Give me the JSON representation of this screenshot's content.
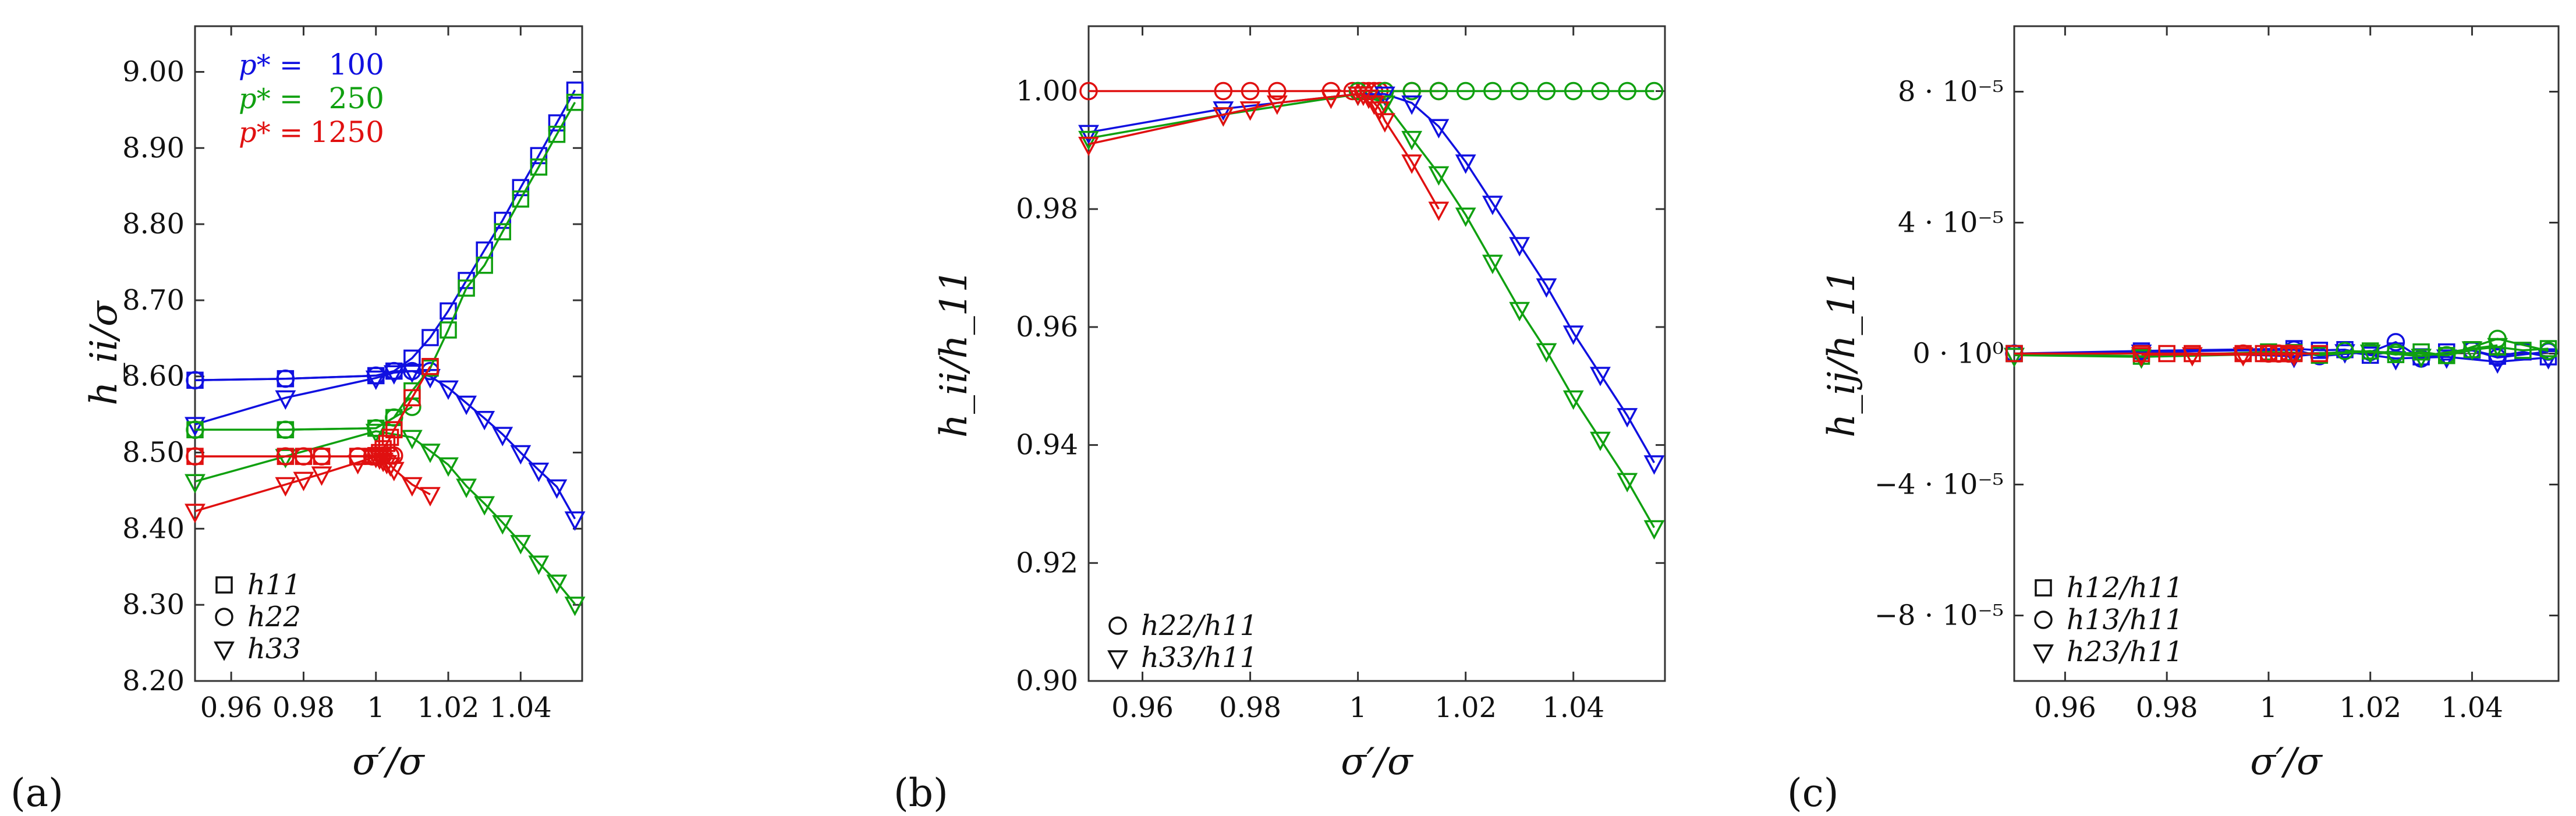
{
  "colors": {
    "p100": "#1010e0",
    "p250": "#10a010",
    "p1250": "#e01010",
    "axis": "#333333"
  },
  "chart_data": [
    {
      "panel": "(a)",
      "type": "line",
      "xlabel": "σ′/σ",
      "ylabel": "h_ii/σ",
      "xlim": [
        0.95,
        1.057
      ],
      "ylim": [
        8.2,
        9.06
      ],
      "xticks": [
        0.96,
        0.98,
        1.0,
        1.02,
        1.04
      ],
      "xtick_labels": [
        "0.96",
        "0.98",
        "1",
        "1.02",
        "1.04"
      ],
      "yticks": [
        8.2,
        8.3,
        8.4,
        8.5,
        8.6,
        8.7,
        8.8,
        8.9,
        9.0
      ],
      "ytick_labels": [
        "8.20",
        "8.30",
        "8.40",
        "8.50",
        "8.60",
        "8.70",
        "8.80",
        "8.90",
        "9.00"
      ],
      "pressure_legend": [
        {
          "label": "p* =",
          "value": "100",
          "color": "p100"
        },
        {
          "label": "p* =",
          "value": "250",
          "color": "p250"
        },
        {
          "label": "p* =",
          "value": "1250",
          "color": "p1250"
        }
      ],
      "marker_legend": [
        {
          "marker": "square",
          "label": "h11"
        },
        {
          "marker": "circle",
          "label": "h22"
        },
        {
          "marker": "triangle",
          "label": "h33"
        }
      ],
      "series": [
        {
          "name": "p*=100 h11",
          "color": "p100",
          "marker": "square",
          "x": [
            0.95,
            0.975,
            1.0,
            1.005,
            1.01,
            1.015,
            1.02,
            1.025,
            1.03,
            1.035,
            1.04,
            1.045,
            1.05,
            1.055
          ],
          "y": [
            8.595,
            8.597,
            8.601,
            8.607,
            8.624,
            8.651,
            8.686,
            8.726,
            8.766,
            8.805,
            8.848,
            8.89,
            8.933,
            8.976
          ]
        },
        {
          "name": "p*=100 h22",
          "color": "p100",
          "marker": "circle",
          "x": [
            0.95,
            0.975,
            1.0,
            1.005,
            1.01,
            1.015
          ],
          "y": [
            8.595,
            8.597,
            8.601,
            8.607,
            8.607,
            8.607
          ]
        },
        {
          "name": "p*=100 h33",
          "color": "p100",
          "marker": "triangle",
          "x": [
            0.95,
            0.975,
            1.0,
            1.005,
            1.01,
            1.015,
            1.02,
            1.025,
            1.03,
            1.035,
            1.04,
            1.045,
            1.05,
            1.055
          ],
          "y": [
            8.537,
            8.572,
            8.598,
            8.605,
            8.607,
            8.6,
            8.585,
            8.565,
            8.545,
            8.524,
            8.5,
            8.477,
            8.455,
            8.413
          ]
        },
        {
          "name": "p*=250 h11",
          "color": "p250",
          "marker": "square",
          "x": [
            0.95,
            0.975,
            1.0,
            1.005,
            1.01,
            1.015,
            1.02,
            1.025,
            1.03,
            1.035,
            1.04,
            1.045,
            1.05,
            1.055
          ],
          "y": [
            8.53,
            8.53,
            8.532,
            8.546,
            8.581,
            8.611,
            8.661,
            8.716,
            8.746,
            8.79,
            8.833,
            8.875,
            8.918,
            8.96
          ]
        },
        {
          "name": "p*=250 h22",
          "color": "p250",
          "marker": "circle",
          "x": [
            0.95,
            0.975,
            1.0,
            1.005,
            1.01
          ],
          "y": [
            8.53,
            8.53,
            8.532,
            8.546,
            8.56
          ]
        },
        {
          "name": "p*=250 h33",
          "color": "p250",
          "marker": "triangle",
          "x": [
            0.95,
            0.975,
            1.0,
            1.01,
            1.015,
            1.02,
            1.025,
            1.03,
            1.035,
            1.04,
            1.045,
            1.05,
            1.055
          ],
          "y": [
            8.462,
            8.495,
            8.528,
            8.52,
            8.502,
            8.484,
            8.456,
            8.433,
            8.408,
            8.382,
            8.355,
            8.33,
            8.301
          ]
        },
        {
          "name": "p*=1250 h11",
          "color": "p1250",
          "marker": "square",
          "x": [
            0.95,
            0.975,
            0.98,
            0.985,
            0.995,
            0.999,
            1.0,
            1.001,
            1.002,
            1.003,
            1.004,
            1.005,
            1.01,
            1.015
          ],
          "y": [
            8.495,
            8.495,
            8.495,
            8.495,
            8.495,
            8.495,
            8.496,
            8.5,
            8.505,
            8.512,
            8.52,
            8.53,
            8.572,
            8.613
          ]
        },
        {
          "name": "p*=1250 h22",
          "color": "p1250",
          "marker": "circle",
          "x": [
            0.95,
            0.975,
            0.98,
            0.985,
            0.995,
            0.999,
            1.0,
            1.002,
            1.004,
            1.005
          ],
          "y": [
            8.495,
            8.495,
            8.495,
            8.495,
            8.495,
            8.495,
            8.496,
            8.496,
            8.496,
            8.496
          ]
        },
        {
          "name": "p*=1250 h33",
          "color": "p1250",
          "marker": "triangle",
          "x": [
            0.95,
            0.975,
            0.98,
            0.985,
            0.995,
            1.0,
            1.001,
            1.002,
            1.003,
            1.004,
            1.005,
            1.01,
            1.015
          ],
          "y": [
            8.423,
            8.458,
            8.465,
            8.472,
            8.487,
            8.495,
            8.493,
            8.49,
            8.487,
            8.484,
            8.478,
            8.458,
            8.445
          ]
        }
      ]
    },
    {
      "panel": "(b)",
      "type": "line",
      "xlabel": "σ′/σ",
      "ylabel": "h_ii/h_11",
      "xlim": [
        0.95,
        1.057
      ],
      "ylim": [
        0.9,
        1.011
      ],
      "xticks": [
        0.96,
        0.98,
        1.0,
        1.02,
        1.04
      ],
      "xtick_labels": [
        "0.96",
        "0.98",
        "1",
        "1.02",
        "1.04"
      ],
      "yticks": [
        0.9,
        0.92,
        0.94,
        0.96,
        0.98,
        1.0
      ],
      "ytick_labels": [
        "0.90",
        "0.92",
        "0.94",
        "0.96",
        "0.98",
        "1.00"
      ],
      "marker_legend": [
        {
          "marker": "circle",
          "label": "h22/h11"
        },
        {
          "marker": "triangle",
          "label": "h33/h11"
        }
      ],
      "series": [
        {
          "name": "p*=1250 h22/h11",
          "color": "p1250",
          "marker": "circle",
          "x": [
            0.95,
            0.975,
            0.98,
            0.985,
            0.995,
            0.999,
            1.0,
            1.001,
            1.002,
            1.003,
            1.004,
            1.005,
            1.01,
            1.015
          ],
          "y": [
            1.0,
            1.0,
            1.0,
            1.0,
            1.0,
            1.0,
            1.0,
            1.0,
            1.0,
            1.0,
            1.0,
            1.0,
            1.0,
            1.0
          ]
        },
        {
          "name": "p*=250 h22/h11",
          "color": "p250",
          "marker": "circle",
          "x": [
            1.0,
            1.005,
            1.01,
            1.015,
            1.02,
            1.025,
            1.03,
            1.035,
            1.04,
            1.045,
            1.05,
            1.055
          ],
          "y": [
            1.0,
            1.0,
            1.0,
            1.0,
            1.0,
            1.0,
            1.0,
            1.0,
            1.0,
            1.0,
            1.0,
            1.0
          ]
        },
        {
          "name": "p*=100 h33/h11",
          "color": "p100",
          "marker": "triangle",
          "x": [
            0.95,
            0.975,
            1.0,
            1.005,
            1.01,
            1.015,
            1.02,
            1.025,
            1.03,
            1.035,
            1.04,
            1.045,
            1.05,
            1.055
          ],
          "y": [
            0.993,
            0.997,
            0.9995,
            0.9995,
            0.998,
            0.994,
            0.988,
            0.981,
            0.974,
            0.967,
            0.959,
            0.952,
            0.945,
            0.937
          ]
        },
        {
          "name": "p*=250 h33/h11",
          "color": "p250",
          "marker": "triangle",
          "x": [
            0.95,
            0.975,
            1.0,
            1.005,
            1.01,
            1.015,
            1.02,
            1.025,
            1.03,
            1.035,
            1.04,
            1.045,
            1.05,
            1.055
          ],
          "y": [
            0.992,
            0.996,
            0.9995,
            0.998,
            0.992,
            0.986,
            0.979,
            0.971,
            0.963,
            0.956,
            0.948,
            0.941,
            0.934,
            0.926
          ]
        },
        {
          "name": "p*=1250 h33/h11",
          "color": "p1250",
          "marker": "triangle",
          "x": [
            0.95,
            0.975,
            0.98,
            0.985,
            0.995,
            1.0,
            1.001,
            1.002,
            1.003,
            1.004,
            1.005,
            1.01,
            1.015
          ],
          "y": [
            0.991,
            0.996,
            0.997,
            0.998,
            0.999,
            0.9995,
            0.9995,
            0.999,
            0.998,
            0.997,
            0.995,
            0.988,
            0.98
          ]
        }
      ]
    },
    {
      "panel": "(c)",
      "type": "scatter",
      "xlabel": "σ′/σ",
      "ylabel": "h_ij/h_11",
      "xlim": [
        0.95,
        1.057
      ],
      "ylim": [
        -0.0001,
        0.0001
      ],
      "xticks": [
        0.96,
        0.98,
        1.0,
        1.02,
        1.04
      ],
      "xtick_labels": [
        "0.96",
        "0.98",
        "1",
        "1.02",
        "1.04"
      ],
      "yticks": [
        -8e-05,
        -4e-05,
        0.0,
        4e-05,
        8e-05
      ],
      "ytick_labels": [
        "−8 · 10⁻⁵",
        "−4 · 10⁻⁵",
        "0 · 10⁰",
        "4 · 10⁻⁵",
        "8 · 10⁻⁵"
      ],
      "marker_legend": [
        {
          "marker": "square",
          "label": "h12/h11"
        },
        {
          "marker": "circle",
          "label": "h13/h11"
        },
        {
          "marker": "triangle",
          "label": "h23/h11"
        }
      ],
      "series": [
        {
          "name": "p*=100 h12/h11",
          "color": "p100",
          "marker": "square",
          "x": [
            0.95,
            0.975,
            1.005,
            1.01,
            1.015,
            1.02,
            1.025,
            1.03,
            1.035,
            1.04,
            1.045,
            1.05,
            1.055
          ],
          "y": [
            0.0,
            8e-07,
            1.5e-06,
            1e-06,
            1.2e-06,
            -5e-07,
            8e-07,
            -1e-06,
            5e-07,
            1e-06,
            -8e-07,
            5e-07,
            -1e-06
          ]
        },
        {
          "name": "p*=100 h13/h11",
          "color": "p100",
          "marker": "circle",
          "x": [
            0.95,
            1.005,
            1.01,
            1.02,
            1.025,
            1.03,
            1.04,
            1.045,
            1.055
          ],
          "y": [
            0.0,
            1.2e-06,
            -8e-07,
            5e-07,
            3.5e-06,
            -1.5e-06,
            1e-06,
            -1.2e-06,
            6e-07
          ]
        },
        {
          "name": "p*=100 h23/h11",
          "color": "p100",
          "marker": "triangle",
          "x": [
            0.95,
            0.975,
            1.005,
            1.015,
            1.025,
            1.035,
            1.045,
            1.055
          ],
          "y": [
            -5e-07,
            5e-07,
            -8e-07,
            6e-07,
            -1.5e-06,
            -1e-06,
            -2.5e-06,
            -1.2e-06
          ]
        },
        {
          "name": "p*=250 h12/h11",
          "color": "p250",
          "marker": "square",
          "x": [
            0.95,
            0.975,
            1.0,
            1.005,
            1.01,
            1.02,
            1.025,
            1.03,
            1.035,
            1.04,
            1.045,
            1.05,
            1.055
          ],
          "y": [
            0.0,
            -8e-07,
            5e-07,
            3e-07,
            -5e-07,
            8e-07,
            -3e-07,
            5e-07,
            -6e-07,
            1.2e-06,
            2e-06,
            1e-06,
            1.5e-06
          ]
        },
        {
          "name": "p*=250 h13/h11",
          "color": "p250",
          "marker": "circle",
          "x": [
            1.015,
            1.025,
            1.035,
            1.045,
            1.055
          ],
          "y": [
            8e-07,
            3e-07,
            -5e-07,
            4.5e-06,
            8e-07
          ]
        },
        {
          "name": "p*=250 h23/h11",
          "color": "p250",
          "marker": "triangle",
          "x": [
            0.95,
            0.975,
            1.02,
            1.03,
            1.04,
            1.045
          ],
          "y": [
            -5e-07,
            -1e-06,
            5e-07,
            -8e-07,
            1.5e-06,
            2.5e-06
          ]
        },
        {
          "name": "p*=1250 h12/h11",
          "color": "p1250",
          "marker": "square",
          "x": [
            0.95,
            0.975,
            0.98,
            0.985,
            0.995,
            0.999,
            1.0,
            1.001,
            1.002,
            1.003,
            1.004,
            1.005,
            1.01
          ],
          "y": [
            0.0,
            0.0,
            0.0,
            0.0,
            0.0,
            0.0,
            0.0,
            0.0,
            0.0,
            0.0,
            0.0,
            0.0,
            0.0
          ]
        },
        {
          "name": "p*=1250 h13/h11",
          "color": "p1250",
          "marker": "circle",
          "x": [
            0.995,
            1.0,
            1.002,
            1.004
          ],
          "y": [
            0.0,
            0.0,
            0.0,
            0.0
          ]
        },
        {
          "name": "p*=1250 h23/h11",
          "color": "p1250",
          "marker": "triangle",
          "x": [
            0.975,
            0.985,
            0.995,
            1.005
          ],
          "y": [
            -3e-07,
            -3e-07,
            -3e-07,
            -3e-07
          ]
        }
      ]
    }
  ]
}
